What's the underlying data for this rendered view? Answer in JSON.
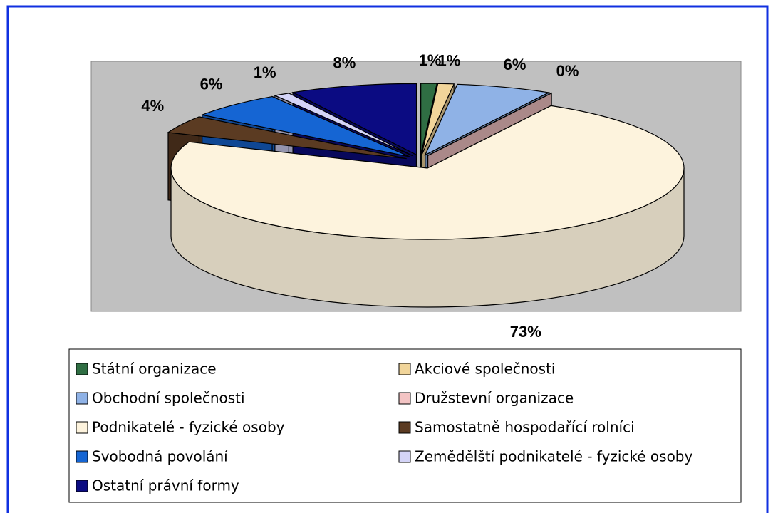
{
  "chart_data": {
    "type": "pie3d",
    "categories": [
      "Státní organizace",
      "Akciové společnosti",
      "Obchodní společnosti",
      "Družstevní organizace",
      "Podnikatelé - fyzické osoby",
      "Samostatně hospodařící rolníci",
      "Svobodná povolání",
      "Zemědělští podnikatelé - fyzické osoby",
      "Ostatní právní formy"
    ],
    "values": [
      1,
      1,
      6,
      0,
      73,
      4,
      6,
      1,
      8
    ],
    "value_labels": [
      "1%",
      "1%",
      "6%",
      "0%",
      "73%",
      "4%",
      "6%",
      "1%",
      "8%"
    ],
    "colors": [
      "#2f6e43",
      "#f1d59a",
      "#8fb2e6",
      "#f3c4c4",
      "#fdf3dd",
      "#5b3b22",
      "#1565d3",
      "#d4d4f7",
      "#0b0b82"
    ],
    "legend": "bottom"
  }
}
